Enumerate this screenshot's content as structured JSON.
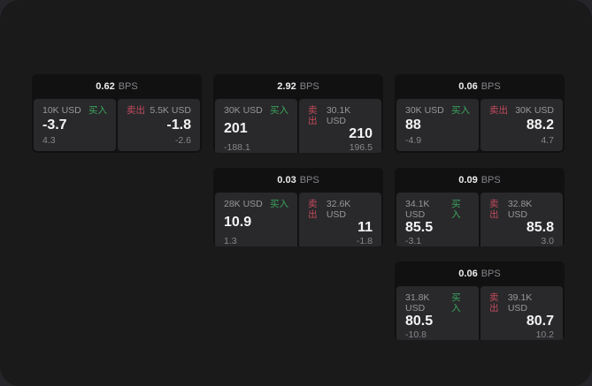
{
  "window": {
    "backdrop_color": "#26262a",
    "surface_color": "#1a1a1b"
  },
  "labels": {
    "buy": "买入",
    "sell": "卖出",
    "spread_unit": "BPS"
  },
  "colors": {
    "buy_green": "#3aa55c",
    "sell_red": "#c24a5c",
    "card_bg": "#111112",
    "panel_bg": "#29292b",
    "value_text": "#f4f4f5",
    "muted_text": "#87878b"
  },
  "cards": [
    {
      "spread": "0.62",
      "grid": {
        "row": "1",
        "col": "1"
      },
      "buy": {
        "size": "10K USD",
        "value": "-3.7",
        "sub": "4.3"
      },
      "sell": {
        "size": "5.5K USD",
        "value": "-1.8",
        "sub": "-2.6"
      }
    },
    {
      "spread": "2.92",
      "grid": {
        "row": "1",
        "col": "2"
      },
      "buy": {
        "size": "30K USD",
        "value": "201",
        "sub": "-188.1"
      },
      "sell": {
        "size": "30.1K USD",
        "value": "210",
        "sub": "196.5"
      }
    },
    {
      "spread": "0.06",
      "grid": {
        "row": "1",
        "col": "3"
      },
      "buy": {
        "size": "30K USD",
        "value": "88",
        "sub": "-4.9"
      },
      "sell": {
        "size": "30K USD",
        "value": "88.2",
        "sub": "4.7"
      }
    },
    {
      "spread": "0.03",
      "grid": {
        "row": "2",
        "col": "2"
      },
      "buy": {
        "size": "28K USD",
        "value": "10.9",
        "sub": "1.3"
      },
      "sell": {
        "size": "32.6K USD",
        "value": "11",
        "sub": "-1.8"
      }
    },
    {
      "spread": "0.09",
      "grid": {
        "row": "2",
        "col": "3"
      },
      "buy": {
        "size": "34.1K USD",
        "value": "85.5",
        "sub": "-3.1"
      },
      "sell": {
        "size": "32.8K USD",
        "value": "85.8",
        "sub": "3.0"
      }
    },
    {
      "spread": "0.06",
      "grid": {
        "row": "3",
        "col": "3"
      },
      "buy": {
        "size": "31.8K USD",
        "value": "80.5",
        "sub": "-10.8"
      },
      "sell": {
        "size": "39.1K USD",
        "value": "80.7",
        "sub": "10.2"
      }
    }
  ]
}
